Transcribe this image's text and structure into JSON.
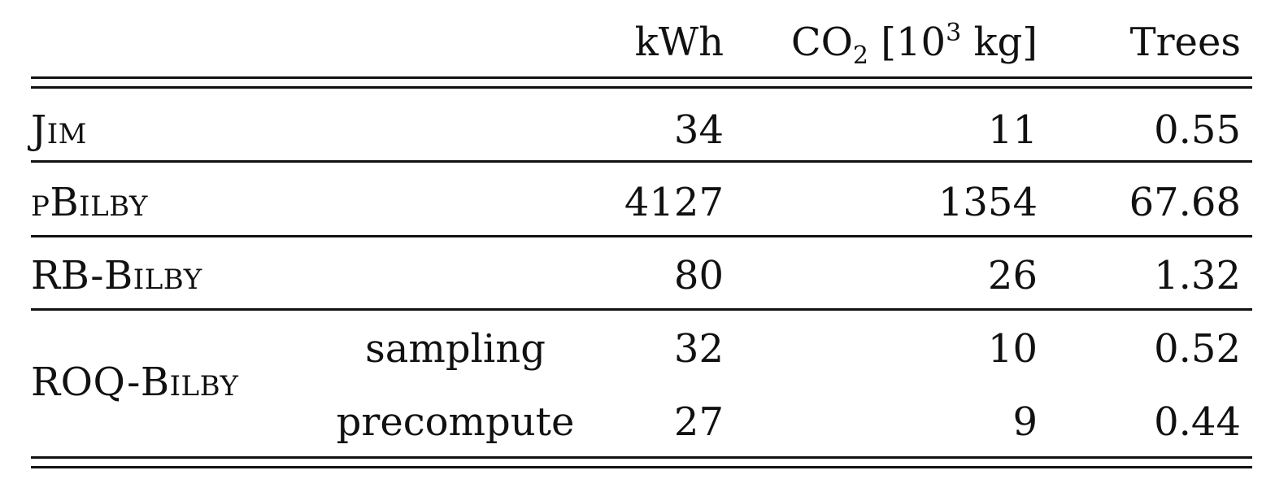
{
  "table": {
    "headers": {
      "kwh": "kWh",
      "co2_main": "CO",
      "co2_sub": "2",
      "co2_unit_prefix": "[10",
      "co2_sup": "3",
      "co2_unit_suffix": "kg]",
      "trees": "Trees"
    },
    "rows": [
      {
        "method": "Jim",
        "kwh": "34",
        "co2": "11",
        "trees": "0.55"
      },
      {
        "method": "pBilby",
        "kwh": "4127",
        "co2": "1354",
        "trees": "67.68"
      },
      {
        "method": "RB-Bilby",
        "kwh": "80",
        "co2": "26",
        "trees": "1.32"
      }
    ],
    "roq": {
      "method": "ROQ-Bilby",
      "subrows": [
        {
          "label": "sampling",
          "kwh": "32",
          "co2": "10",
          "trees": "0.52"
        },
        {
          "label": "precompute",
          "kwh": "27",
          "co2": "9",
          "trees": "0.44"
        }
      ]
    }
  }
}
